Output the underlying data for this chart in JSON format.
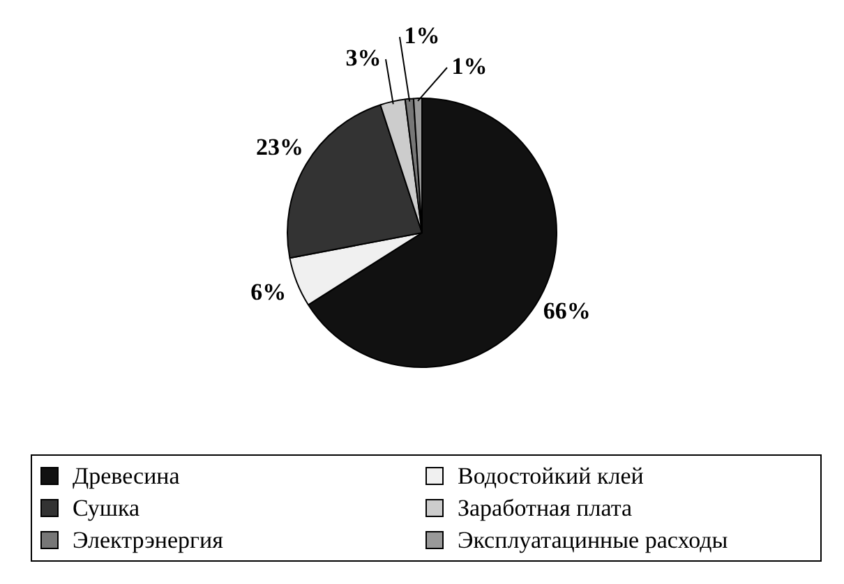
{
  "chart_data": {
    "type": "pie",
    "categories": [
      "Древесина",
      "Водостойкий клей",
      "Сушка",
      "Заработная плата",
      "Электрэнергия",
      "Эксплуатацинные расходы"
    ],
    "values": [
      66,
      6,
      23,
      3,
      1,
      1
    ],
    "colors": [
      "#111111",
      "#f0f0f0",
      "#333333",
      "#cccccc",
      "#777777",
      "#999999"
    ],
    "value_labels": [
      "66%",
      "6%",
      "23%",
      "3%",
      "1%",
      "1%"
    ],
    "legend": "bottom"
  }
}
